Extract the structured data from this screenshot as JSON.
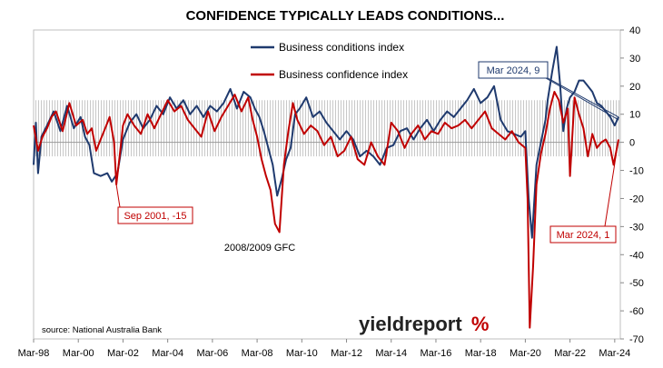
{
  "chart_data": {
    "type": "line",
    "title": "CONFIDENCE TYPICALLY LEADS CONDITIONS...",
    "xlabel": "",
    "ylabel": "",
    "xlim": [
      1998.0,
      2024.25
    ],
    "ylim": [
      -70,
      40
    ],
    "y_ticks": [
      40,
      30,
      20,
      10,
      0,
      -10,
      -20,
      -30,
      -40,
      -50,
      -60,
      -70
    ],
    "x_tick_labels": [
      "Mar-98",
      "Mar-00",
      "Mar-02",
      "Mar-04",
      "Mar-06",
      "Mar-08",
      "Mar-10",
      "Mar-12",
      "Mar-14",
      "Mar-16",
      "Mar-18",
      "Mar-20",
      "Mar-22",
      "Mar-24"
    ],
    "grid": false,
    "shaded_band": [
      -5,
      15
    ],
    "legend": {
      "position": "top-center"
    },
    "series": [
      {
        "name": "Business conditions index",
        "color": "#1f3a6e",
        "points": [
          [
            1998.0,
            -8
          ],
          [
            1998.1,
            7
          ],
          [
            1998.2,
            -11
          ],
          [
            1998.35,
            2
          ],
          [
            1998.6,
            6
          ],
          [
            1998.9,
            11
          ],
          [
            1999.2,
            4
          ],
          [
            1999.5,
            13
          ],
          [
            1999.8,
            5
          ],
          [
            2000.1,
            9
          ],
          [
            2000.3,
            2
          ],
          [
            2000.5,
            -1
          ],
          [
            2000.7,
            -11
          ],
          [
            2001.0,
            -12
          ],
          [
            2001.3,
            -11
          ],
          [
            2001.5,
            -14
          ],
          [
            2001.75,
            -11
          ],
          [
            2002.0,
            1
          ],
          [
            2002.3,
            7
          ],
          [
            2002.6,
            10
          ],
          [
            2002.9,
            5
          ],
          [
            2003.2,
            8
          ],
          [
            2003.5,
            13
          ],
          [
            2003.8,
            10
          ],
          [
            2004.1,
            16
          ],
          [
            2004.4,
            12
          ],
          [
            2004.7,
            15
          ],
          [
            2005.0,
            10
          ],
          [
            2005.3,
            13
          ],
          [
            2005.6,
            9
          ],
          [
            2005.9,
            13
          ],
          [
            2006.2,
            11
          ],
          [
            2006.5,
            14
          ],
          [
            2006.8,
            19
          ],
          [
            2007.1,
            12
          ],
          [
            2007.4,
            18
          ],
          [
            2007.7,
            16
          ],
          [
            2007.9,
            12
          ],
          [
            2008.1,
            9
          ],
          [
            2008.3,
            4
          ],
          [
            2008.5,
            -2
          ],
          [
            2008.7,
            -8
          ],
          [
            2008.9,
            -19
          ],
          [
            2009.1,
            -13
          ],
          [
            2009.3,
            -6
          ],
          [
            2009.5,
            -2
          ],
          [
            2009.7,
            10
          ],
          [
            2009.9,
            12
          ],
          [
            2010.2,
            16
          ],
          [
            2010.5,
            9
          ],
          [
            2010.8,
            11
          ],
          [
            2011.1,
            7
          ],
          [
            2011.4,
            4
          ],
          [
            2011.7,
            1
          ],
          [
            2012.0,
            4
          ],
          [
            2012.3,
            1
          ],
          [
            2012.6,
            -5
          ],
          [
            2012.9,
            -3
          ],
          [
            2013.2,
            -5
          ],
          [
            2013.5,
            -8
          ],
          [
            2013.8,
            -2
          ],
          [
            2014.1,
            -1
          ],
          [
            2014.4,
            4
          ],
          [
            2014.7,
            5
          ],
          [
            2015.0,
            1
          ],
          [
            2015.3,
            5
          ],
          [
            2015.6,
            8
          ],
          [
            2015.9,
            4
          ],
          [
            2016.2,
            8
          ],
          [
            2016.5,
            11
          ],
          [
            2016.8,
            9
          ],
          [
            2017.1,
            12
          ],
          [
            2017.4,
            15
          ],
          [
            2017.7,
            19
          ],
          [
            2018.0,
            14
          ],
          [
            2018.3,
            16
          ],
          [
            2018.6,
            20
          ],
          [
            2018.9,
            8
          ],
          [
            2019.2,
            4
          ],
          [
            2019.5,
            3
          ],
          [
            2019.8,
            2
          ],
          [
            2020.0,
            4
          ],
          [
            2020.15,
            -20
          ],
          [
            2020.3,
            -34
          ],
          [
            2020.5,
            -8
          ],
          [
            2020.7,
            0
          ],
          [
            2020.9,
            8
          ],
          [
            2021.0,
            15
          ],
          [
            2021.2,
            25
          ],
          [
            2021.4,
            34
          ],
          [
            2021.55,
            21
          ],
          [
            2021.7,
            4
          ],
          [
            2021.85,
            12
          ],
          [
            2022.0,
            16
          ],
          [
            2022.2,
            18
          ],
          [
            2022.4,
            22
          ],
          [
            2022.6,
            22
          ],
          [
            2022.8,
            20
          ],
          [
            2023.0,
            18
          ],
          [
            2023.2,
            14
          ],
          [
            2023.4,
            13
          ],
          [
            2023.6,
            11
          ],
          [
            2023.8,
            9
          ],
          [
            2024.0,
            6
          ],
          [
            2024.17,
            9
          ]
        ]
      },
      {
        "name": "Business confidence index",
        "color": "#c00000",
        "points": [
          [
            1998.0,
            6
          ],
          [
            1998.2,
            -3
          ],
          [
            1998.4,
            2
          ],
          [
            1998.6,
            5
          ],
          [
            1998.8,
            9
          ],
          [
            1999.0,
            11
          ],
          [
            1999.3,
            4
          ],
          [
            1999.6,
            14
          ],
          [
            1999.9,
            6
          ],
          [
            2000.2,
            8
          ],
          [
            2000.4,
            3
          ],
          [
            2000.6,
            5
          ],
          [
            2000.8,
            -3
          ],
          [
            2001.0,
            1
          ],
          [
            2001.2,
            5
          ],
          [
            2001.4,
            9
          ],
          [
            2001.6,
            0
          ],
          [
            2001.7,
            -15
          ],
          [
            2001.85,
            -5
          ],
          [
            2002.0,
            6
          ],
          [
            2002.2,
            10
          ],
          [
            2002.5,
            6
          ],
          [
            2002.8,
            3
          ],
          [
            2003.1,
            10
          ],
          [
            2003.4,
            5
          ],
          [
            2003.7,
            10
          ],
          [
            2004.0,
            15
          ],
          [
            2004.3,
            11
          ],
          [
            2004.6,
            13
          ],
          [
            2004.9,
            8
          ],
          [
            2005.2,
            5
          ],
          [
            2005.5,
            2
          ],
          [
            2005.8,
            11
          ],
          [
            2006.1,
            4
          ],
          [
            2006.4,
            9
          ],
          [
            2006.7,
            13
          ],
          [
            2007.0,
            17
          ],
          [
            2007.3,
            11
          ],
          [
            2007.6,
            16
          ],
          [
            2007.8,
            8
          ],
          [
            2008.0,
            2
          ],
          [
            2008.2,
            -6
          ],
          [
            2008.4,
            -12
          ],
          [
            2008.6,
            -17
          ],
          [
            2008.8,
            -29
          ],
          [
            2009.0,
            -32
          ],
          [
            2009.2,
            -8
          ],
          [
            2009.4,
            4
          ],
          [
            2009.6,
            14
          ],
          [
            2009.8,
            8
          ],
          [
            2010.1,
            3
          ],
          [
            2010.4,
            6
          ],
          [
            2010.7,
            4
          ],
          [
            2011.0,
            -1
          ],
          [
            2011.3,
            2
          ],
          [
            2011.6,
            -5
          ],
          [
            2011.9,
            -3
          ],
          [
            2012.2,
            2
          ],
          [
            2012.5,
            -6
          ],
          [
            2012.8,
            -8
          ],
          [
            2013.1,
            0
          ],
          [
            2013.4,
            -5
          ],
          [
            2013.7,
            -8
          ],
          [
            2014.0,
            7
          ],
          [
            2014.3,
            4
          ],
          [
            2014.6,
            -2
          ],
          [
            2014.9,
            3
          ],
          [
            2015.2,
            6
          ],
          [
            2015.5,
            1
          ],
          [
            2015.8,
            4
          ],
          [
            2016.1,
            3
          ],
          [
            2016.4,
            7
          ],
          [
            2016.7,
            5
          ],
          [
            2017.0,
            6
          ],
          [
            2017.3,
            8
          ],
          [
            2017.6,
            5
          ],
          [
            2017.9,
            8
          ],
          [
            2018.2,
            11
          ],
          [
            2018.5,
            5
          ],
          [
            2018.8,
            3
          ],
          [
            2019.1,
            1
          ],
          [
            2019.4,
            4
          ],
          [
            2019.7,
            0
          ],
          [
            2020.0,
            -2
          ],
          [
            2020.1,
            -20
          ],
          [
            2020.2,
            -66
          ],
          [
            2020.35,
            -44
          ],
          [
            2020.5,
            -15
          ],
          [
            2020.7,
            -4
          ],
          [
            2020.9,
            3
          ],
          [
            2021.1,
            12
          ],
          [
            2021.3,
            18
          ],
          [
            2021.5,
            15
          ],
          [
            2021.7,
            7
          ],
          [
            2021.9,
            12
          ],
          [
            2022.0,
            -12
          ],
          [
            2022.2,
            16
          ],
          [
            2022.4,
            10
          ],
          [
            2022.6,
            5
          ],
          [
            2022.8,
            -5
          ],
          [
            2023.0,
            3
          ],
          [
            2023.2,
            -2
          ],
          [
            2023.4,
            0
          ],
          [
            2023.6,
            1
          ],
          [
            2023.8,
            -2
          ],
          [
            2023.95,
            -8
          ],
          [
            2024.1,
            -2
          ],
          [
            2024.17,
            1
          ]
        ]
      }
    ],
    "annotations": [
      {
        "text": "Mar 2024, 9",
        "series": "Business conditions index",
        "x": 2024.17,
        "y": 9,
        "color": "#1f3a6e"
      },
      {
        "text": "Sep 2001, -15",
        "series": "Business confidence index",
        "x": 2001.7,
        "y": -15,
        "color": "#c00000"
      },
      {
        "text": "Mar 2024, 1",
        "series": "Business confidence index",
        "x": 2024.17,
        "y": 1,
        "color": "#c00000"
      },
      {
        "text": "2008/2009 GFC",
        "series": "",
        "x": 2008.9,
        "y": -32,
        "color": "#000000"
      }
    ],
    "source": "source: National Australia Bank"
  },
  "logo": {
    "text_main": "yieldreport",
    "text_mark": "%",
    "color_main": "#222222",
    "color_mark": "#c00000"
  }
}
